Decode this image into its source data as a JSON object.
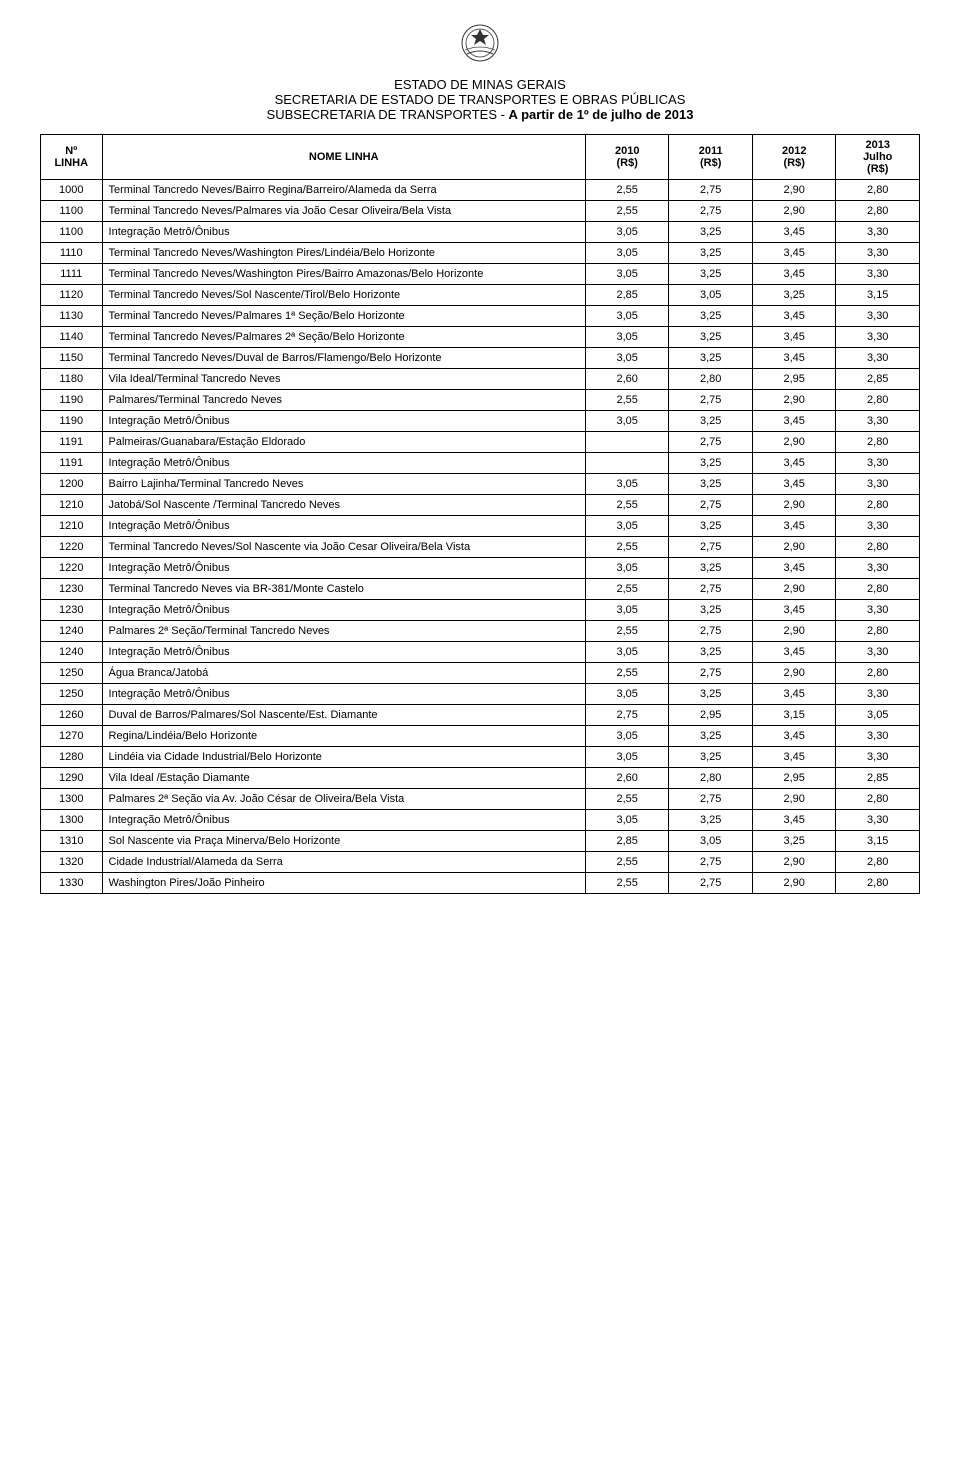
{
  "header": {
    "line1": "ESTADO DE MINAS GERAIS",
    "line2": "SECRETARIA DE ESTADO DE TRANSPORTES E OBRAS PÚBLICAS",
    "line3_prefix": "SUBSECRETARIA DE TRANSPORTES - ",
    "line3_bold": "A partir de 1º de julho de 2013",
    "emblem_color": "#333333"
  },
  "table": {
    "columns": {
      "num_l1": "Nº",
      "num_l2": "LINHA",
      "name": "NOME LINHA",
      "y2010": "2010",
      "y2011": "2011",
      "y2012": "2012",
      "y2013_l1": "2013",
      "y2013_l2": "Julho",
      "y2013_l3": "(R$)",
      "unit": "(R$)"
    },
    "border_color": "#000000",
    "font_size_pt": 8,
    "rows": [
      {
        "num": "1000",
        "name": "Terminal Tancredo Neves/Bairro Regina/Barreiro/Alameda da Serra",
        "v2010": "2,55",
        "v2011": "2,75",
        "v2012": "2,90",
        "v2013": "2,80"
      },
      {
        "num": "1100",
        "name": "Terminal Tancredo Neves/Palmares via João Cesar Oliveira/Bela Vista",
        "v2010": "2,55",
        "v2011": "2,75",
        "v2012": "2,90",
        "v2013": "2,80"
      },
      {
        "num": "1100",
        "name": "Integração Metrô/Ônibus",
        "v2010": "3,05",
        "v2011": "3,25",
        "v2012": "3,45",
        "v2013": "3,30"
      },
      {
        "num": "1110",
        "name": "Terminal Tancredo Neves/Washington Pires/Lindéia/Belo Horizonte",
        "v2010": "3,05",
        "v2011": "3,25",
        "v2012": "3,45",
        "v2013": "3,30"
      },
      {
        "num": "1111",
        "name": "Terminal Tancredo Neves/Washington Pires/Bairro Amazonas/Belo Horizonte",
        "v2010": "3,05",
        "v2011": "3,25",
        "v2012": "3,45",
        "v2013": "3,30"
      },
      {
        "num": "1120",
        "name": "Terminal Tancredo Neves/Sol Nascente/Tirol/Belo Horizonte",
        "v2010": "2,85",
        "v2011": "3,05",
        "v2012": "3,25",
        "v2013": "3,15"
      },
      {
        "num": "1130",
        "name": "Terminal Tancredo Neves/Palmares 1ª Seção/Belo Horizonte",
        "v2010": "3,05",
        "v2011": "3,25",
        "v2012": "3,45",
        "v2013": "3,30"
      },
      {
        "num": "1140",
        "name": "Terminal Tancredo Neves/Palmares 2ª Seção/Belo Horizonte",
        "v2010": "3,05",
        "v2011": "3,25",
        "v2012": "3,45",
        "v2013": "3,30"
      },
      {
        "num": "1150",
        "name": "Terminal Tancredo Neves/Duval de Barros/Flamengo/Belo Horizonte",
        "v2010": "3,05",
        "v2011": "3,25",
        "v2012": "3,45",
        "v2013": "3,30"
      },
      {
        "num": "1180",
        "name": "Vila Ideal/Terminal Tancredo Neves",
        "v2010": "2,60",
        "v2011": "2,80",
        "v2012": "2,95",
        "v2013": "2,85"
      },
      {
        "num": "1190",
        "name": "Palmares/Terminal Tancredo Neves",
        "v2010": "2,55",
        "v2011": "2,75",
        "v2012": "2,90",
        "v2013": "2,80"
      },
      {
        "num": "1190",
        "name": "Integração Metrô/Ônibus",
        "v2010": "3,05",
        "v2011": "3,25",
        "v2012": "3,45",
        "v2013": "3,30"
      },
      {
        "num": "1191",
        "name": "Palmeiras/Guanabara/Estação Eldorado",
        "v2010": "",
        "v2011": "2,75",
        "v2012": "2,90",
        "v2013": "2,80"
      },
      {
        "num": "1191",
        "name": "Integração Metrô/Ônibus",
        "v2010": "",
        "v2011": "3,25",
        "v2012": "3,45",
        "v2013": "3,30"
      },
      {
        "num": "1200",
        "name": "Bairro Lajinha/Terminal Tancredo Neves",
        "v2010": "3,05",
        "v2011": "3,25",
        "v2012": "3,45",
        "v2013": "3,30"
      },
      {
        "num": "1210",
        "name": "Jatobá/Sol Nascente /Terminal Tancredo Neves",
        "v2010": "2,55",
        "v2011": "2,75",
        "v2012": "2,90",
        "v2013": "2,80"
      },
      {
        "num": "1210",
        "name": "Integração Metrô/Ônibus",
        "v2010": "3,05",
        "v2011": "3,25",
        "v2012": "3,45",
        "v2013": "3,30"
      },
      {
        "num": "1220",
        "name": "Terminal Tancredo Neves/Sol Nascente via João Cesar Oliveira/Bela Vista",
        "v2010": "2,55",
        "v2011": "2,75",
        "v2012": "2,90",
        "v2013": "2,80"
      },
      {
        "num": "1220",
        "name": "Integração Metrô/Ônibus",
        "v2010": "3,05",
        "v2011": "3,25",
        "v2012": "3,45",
        "v2013": "3,30"
      },
      {
        "num": "1230",
        "name": "Terminal Tancredo Neves via BR-381/Monte Castelo",
        "v2010": "2,55",
        "v2011": "2,75",
        "v2012": "2,90",
        "v2013": "2,80"
      },
      {
        "num": "1230",
        "name": "Integração Metrô/Ônibus",
        "v2010": "3,05",
        "v2011": "3,25",
        "v2012": "3,45",
        "v2013": "3,30"
      },
      {
        "num": "1240",
        "name": "Palmares 2ª Seção/Terminal Tancredo Neves",
        "v2010": "2,55",
        "v2011": "2,75",
        "v2012": "2,90",
        "v2013": "2,80"
      },
      {
        "num": "1240",
        "name": "Integração Metrô/Ônibus",
        "v2010": "3,05",
        "v2011": "3,25",
        "v2012": "3,45",
        "v2013": "3,30"
      },
      {
        "num": "1250",
        "name": "Água Branca/Jatobá",
        "v2010": "2,55",
        "v2011": "2,75",
        "v2012": "2,90",
        "v2013": "2,80"
      },
      {
        "num": "1250",
        "name": "Integração Metrô/Ônibus",
        "v2010": "3,05",
        "v2011": "3,25",
        "v2012": "3,45",
        "v2013": "3,30"
      },
      {
        "num": "1260",
        "name": "Duval de Barros/Palmares/Sol Nascente/Est. Diamante",
        "v2010": "2,75",
        "v2011": "2,95",
        "v2012": "3,15",
        "v2013": "3,05"
      },
      {
        "num": "1270",
        "name": "Regina/Lindéia/Belo Horizonte",
        "v2010": "3,05",
        "v2011": "3,25",
        "v2012": "3,45",
        "v2013": "3,30"
      },
      {
        "num": "1280",
        "name": "Lindéia via Cidade Industrial/Belo Horizonte",
        "v2010": "3,05",
        "v2011": "3,25",
        "v2012": "3,45",
        "v2013": "3,30"
      },
      {
        "num": "1290",
        "name": "Vila Ideal /Estação Diamante",
        "v2010": "2,60",
        "v2011": "2,80",
        "v2012": "2,95",
        "v2013": "2,85"
      },
      {
        "num": "1300",
        "name": "Palmares 2ª Seção via Av. João César de Oliveira/Bela Vista",
        "v2010": "2,55",
        "v2011": "2,75",
        "v2012": "2,90",
        "v2013": "2,80"
      },
      {
        "num": "1300",
        "name": "Integração Metrô/Ônibus",
        "v2010": "3,05",
        "v2011": "3,25",
        "v2012": "3,45",
        "v2013": "3,30"
      },
      {
        "num": "1310",
        "name": "Sol Nascente via Praça Minerva/Belo Horizonte",
        "v2010": "2,85",
        "v2011": "3,05",
        "v2012": "3,25",
        "v2013": "3,15"
      },
      {
        "num": "1320",
        "name": "Cidade Industrial/Alameda da Serra",
        "v2010": "2,55",
        "v2011": "2,75",
        "v2012": "2,90",
        "v2013": "2,80"
      },
      {
        "num": "1330",
        "name": "Washington Pires/João Pinheiro",
        "v2010": "2,55",
        "v2011": "2,75",
        "v2012": "2,90",
        "v2013": "2,80"
      }
    ]
  }
}
